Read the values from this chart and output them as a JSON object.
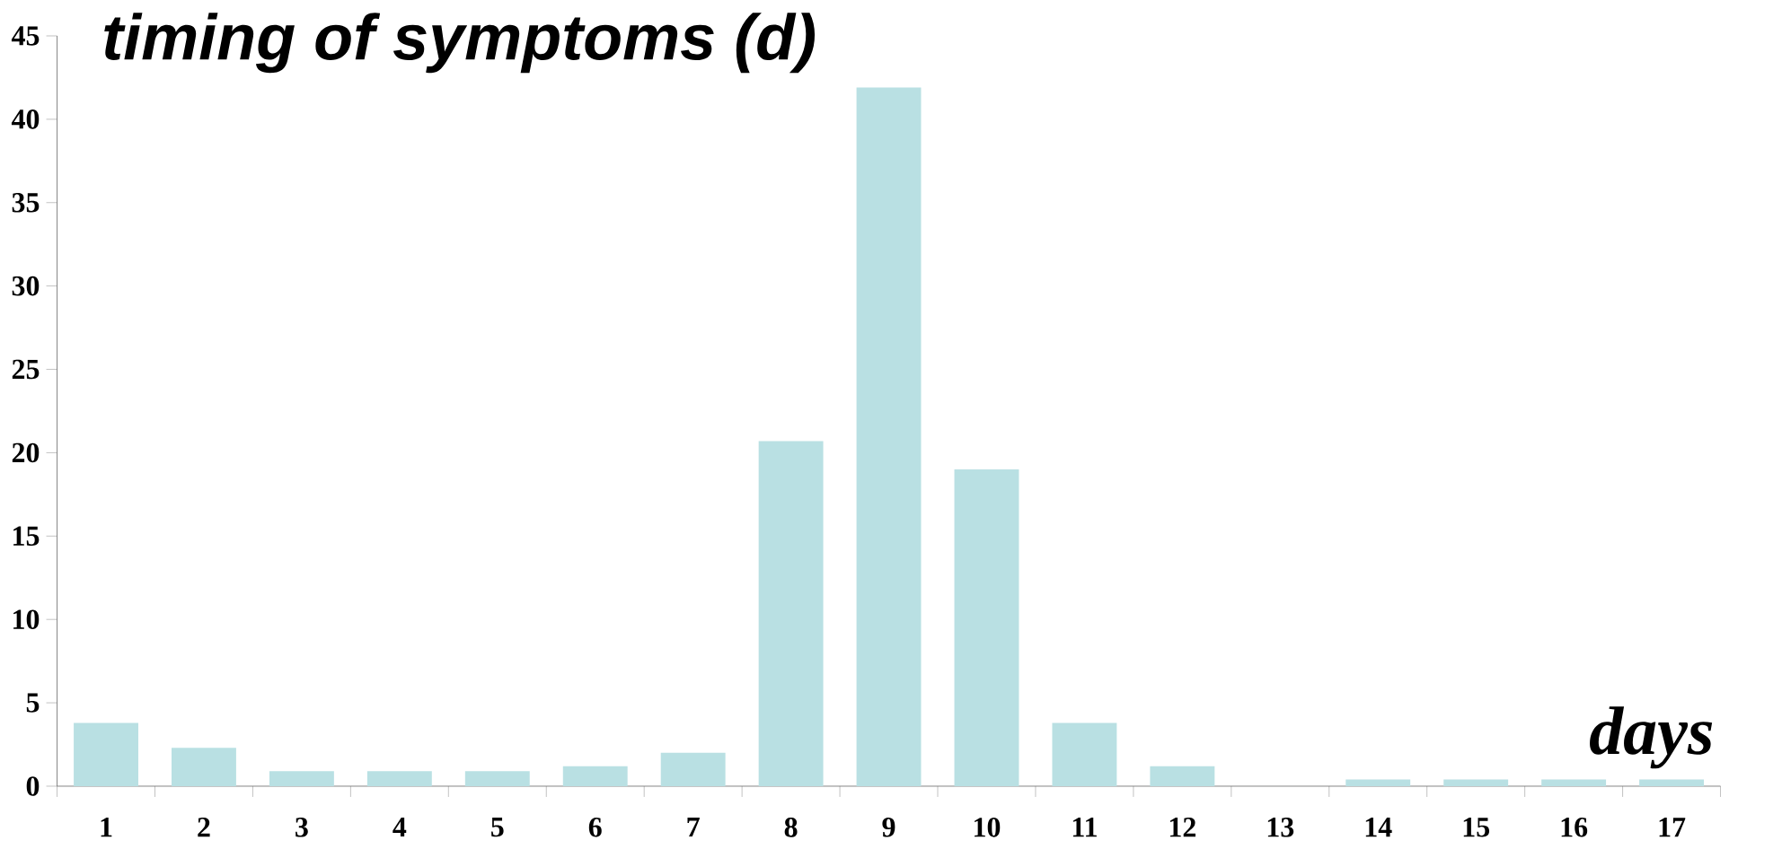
{
  "chart_data": {
    "type": "bar",
    "title": "timing of symptoms (d)",
    "xlabel": "days",
    "categories": [
      "1",
      "2",
      "3",
      "4",
      "5",
      "6",
      "7",
      "8",
      "9",
      "10",
      "11",
      "12",
      "13",
      "14",
      "15",
      "16",
      "17"
    ],
    "values": [
      3.8,
      2.3,
      0.9,
      0.9,
      0.9,
      1.2,
      2.0,
      20.7,
      41.9,
      19.0,
      3.8,
      1.2,
      0,
      0.4,
      0.4,
      0.4,
      0.4
    ],
    "color": "#b9e0e3",
    "ylim": [
      0,
      45
    ],
    "yticks": [
      0,
      5,
      10,
      15,
      20,
      25,
      30,
      35,
      40,
      45
    ],
    "grid": false
  }
}
